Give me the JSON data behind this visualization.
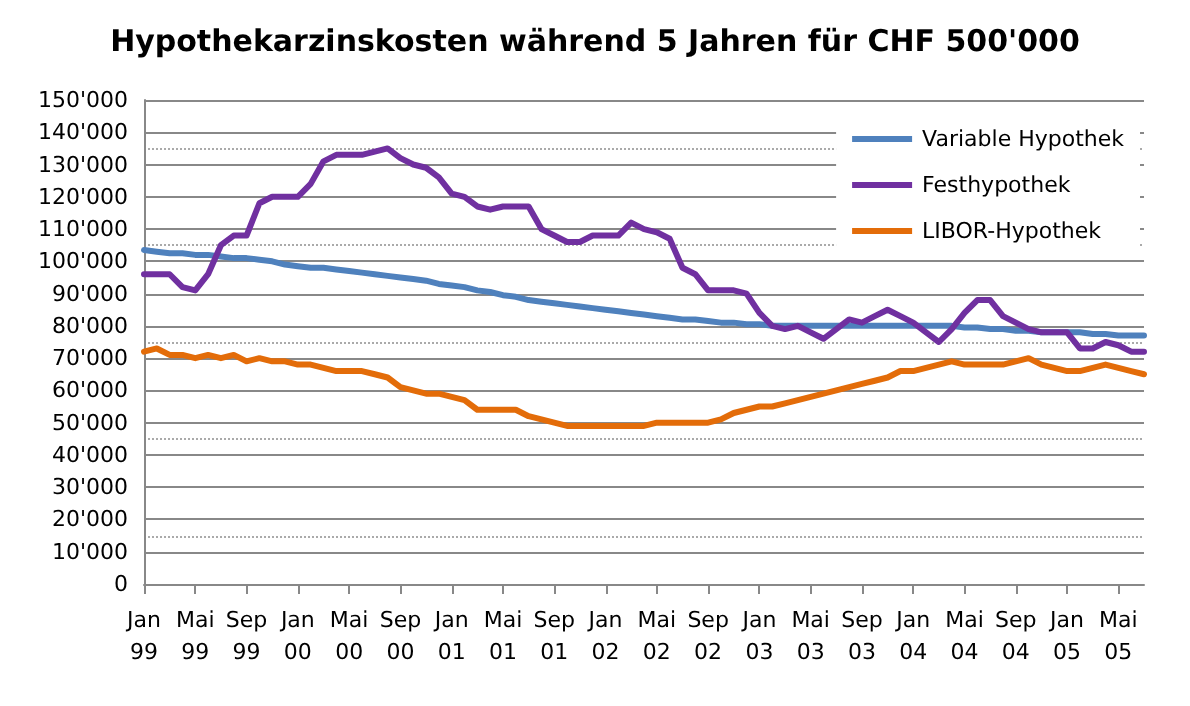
{
  "chart_data": {
    "type": "line",
    "title": "Hypothekarzinskosten während 5 Jahren für CHF 500'000",
    "categories": [
      "Jan\n99",
      null,
      null,
      null,
      "Mai\n99",
      null,
      null,
      null,
      "Sep\n99",
      null,
      null,
      null,
      "Jan\n00",
      null,
      null,
      null,
      "Mai\n00",
      null,
      null,
      null,
      "Sep\n00",
      null,
      null,
      null,
      "Jan\n01",
      null,
      null,
      null,
      "Mai\n01",
      null,
      null,
      null,
      "Sep\n01",
      null,
      null,
      null,
      "Jan\n02",
      null,
      null,
      null,
      "Mai\n02",
      null,
      null,
      null,
      "Sep\n02",
      null,
      null,
      null,
      "Jan\n03",
      null,
      null,
      null,
      "Mai\n03",
      null,
      null,
      null,
      "Sep\n03",
      null,
      null,
      null,
      "Jan\n04",
      null,
      null,
      null,
      "Mai\n04",
      null,
      null,
      null,
      "Sep\n04",
      null,
      null,
      null,
      "Jan\n05",
      null,
      null,
      null,
      "Mai\n05",
      null,
      null
    ],
    "series": [
      {
        "name": "Variable Hypothek",
        "color": "#4f81bd",
        "values": [
          103500,
          103000,
          102500,
          102500,
          102000,
          102000,
          101500,
          101000,
          101000,
          100500,
          100000,
          99000,
          98500,
          98000,
          98000,
          97500,
          97000,
          96500,
          96000,
          95500,
          95000,
          94500,
          94000,
          93000,
          92500,
          92000,
          91000,
          90500,
          89500,
          89000,
          88000,
          87500,
          87000,
          86500,
          86000,
          85500,
          85000,
          84500,
          84000,
          83500,
          83000,
          82500,
          82000,
          82000,
          81500,
          81000,
          81000,
          80500,
          80500,
          80000,
          80000,
          80000,
          80000,
          80000,
          80000,
          80000,
          80000,
          80000,
          80000,
          80000,
          80000,
          80000,
          80000,
          80000,
          79500,
          79500,
          79000,
          79000,
          78500,
          78500,
          78000,
          78000,
          78000,
          78000,
          77500,
          77500,
          77000,
          77000,
          77000
        ]
      },
      {
        "name": "Festhypothek",
        "color": "#7030a0",
        "values": [
          96000,
          96000,
          96000,
          92000,
          91000,
          96000,
          105000,
          108000,
          108000,
          118000,
          120000,
          120000,
          120000,
          124000,
          131000,
          133000,
          133000,
          133000,
          134000,
          135000,
          132000,
          130000,
          129000,
          126000,
          121000,
          120000,
          117000,
          116000,
          117000,
          117000,
          117000,
          110000,
          108000,
          106000,
          106000,
          108000,
          108000,
          108000,
          112000,
          110000,
          109000,
          107000,
          98000,
          96000,
          91000,
          91000,
          91000,
          90000,
          84000,
          80000,
          79000,
          80000,
          78000,
          76000,
          79000,
          82000,
          81000,
          83000,
          85000,
          83000,
          81000,
          78000,
          75000,
          79000,
          84000,
          88000,
          88000,
          83000,
          81000,
          79000,
          78000,
          78000,
          78000,
          73000,
          73000,
          75000,
          74000,
          72000,
          72000
        ]
      },
      {
        "name": "LIBOR-Hypothek",
        "color": "#e36c09",
        "values": [
          72000,
          73000,
          71000,
          71000,
          70000,
          71000,
          70000,
          71000,
          69000,
          70000,
          69000,
          69000,
          68000,
          68000,
          67000,
          66000,
          66000,
          66000,
          65000,
          64000,
          61000,
          60000,
          59000,
          59000,
          58000,
          57000,
          54000,
          54000,
          54000,
          54000,
          52000,
          51000,
          50000,
          49000,
          49000,
          49000,
          49000,
          49000,
          49000,
          49000,
          50000,
          50000,
          50000,
          50000,
          50000,
          51000,
          53000,
          54000,
          55000,
          55000,
          56000,
          57000,
          58000,
          59000,
          60000,
          61000,
          62000,
          63000,
          64000,
          66000,
          66000,
          67000,
          68000,
          69000,
          68000,
          68000,
          68000,
          68000,
          69000,
          70000,
          68000,
          67000,
          66000,
          66000,
          67000,
          68000,
          67000,
          66000,
          65000
        ]
      }
    ],
    "ylim": [
      0,
      150000
    ],
    "yticks": [
      0,
      {
        "value": 10000,
        "label": "10'000"
      },
      {
        "value": 20000,
        "label": "20'000"
      },
      {
        "value": 30000,
        "label": "30'000"
      },
      {
        "value": 40000,
        "label": "40'000"
      },
      {
        "value": 50000,
        "label": "50'000"
      },
      {
        "value": 60000,
        "label": "60'000"
      },
      {
        "value": 70000,
        "label": "70'000"
      },
      {
        "value": 80000,
        "label": "80'000"
      },
      {
        "value": 90000,
        "label": "90'000"
      },
      {
        "value": 100000,
        "label": "100'000"
      },
      {
        "value": 110000,
        "label": "110'000"
      },
      {
        "value": 120000,
        "label": "120'000"
      },
      {
        "value": 130000,
        "label": "130'000"
      },
      {
        "value": 140000,
        "label": "140'000"
      },
      {
        "value": 150000,
        "label": "150'000"
      }
    ],
    "grid": "y",
    "legend": "top right",
    "marker": "none",
    "line_style": "solid"
  }
}
